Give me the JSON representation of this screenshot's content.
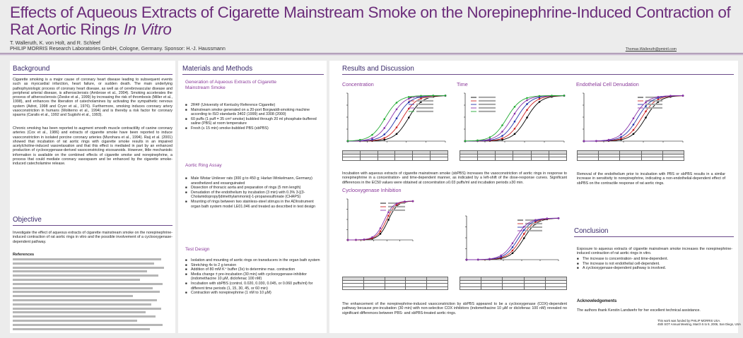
{
  "header": {
    "title_main": "Effects of Aqueous Extracts of Cigarette Mainstream Smoke on the Norepinephrine-Induced Contraction of Rat Aortic Rings ",
    "title_italic": "In Vitro",
    "authors": "T. Walleruth, K. von Holt, and R. Schleef",
    "affiliation": "PHILIP MORRIS Research Laboratories GmbH, Cologne, Germany. Sponsor: H.-J. Haussmann",
    "email": "Thomas.Walleruth@pmintl.com"
  },
  "background": {
    "title": "Background",
    "p1": "Cigarette smoking is a major cause of coronary heart disease leading to subsequent events such as myocardial infarction, heart failure, or sudden death. The main underlying pathophysiologic process of coronary heart disease, as well as of cerebrovascular disease and peripheral arterial disease, is atherosclerosis (Ambrose et al., 2004). Smoking accelerates the process of atherosclerosis (Zieske et al., 1999) by increasing the risk of thrombosis (Miller et al., 1998), and enhances the liberation of catecholamines by activating the sympathetic nervous system (Adrot, 1998 and Cryer et al., 1976). Furthermore, smoking induces coronary artery vasoconstriction in humans (Moliterno et al., 1994) and is thereby a risk factor for coronary spasms (Caralis et al., 1992 and Sugiishi et al., 1993).",
    "p2": "Chronic smoking has been reported to augment smooth muscle contractility of canine coronary arteries (Cox et al., 1986) and extracts of cigarette smoke have been reported to induce vasoconstriction in isolated porcine coronary arteries (Murohara et al., 1994). Raij et al. (2001) showed that incubation of rat aortic rings with cigarette smoke results in an impaired acetylcholine-induced vasorelaxation and that this effect is mediated in part by an enhanced production of cyclooxygenase-derived vasoconstricting eicosanoids. However, little mechanistic information is available on the combined effects of cigarette smoke and norepinephrine, a process that could mediate coronary vasospasm and be enhanced by the cigarette smoke-induced catecholamine release."
  },
  "objective": {
    "title": "Objective",
    "p1": "Investigate the effect of aqueous extracts of cigarette mainstream smoke on the norepinephrine-induced contraction of rat aortic rings in vitro and the possible involvement of a cyclooxygenase-dependent pathway."
  },
  "references": {
    "title": "References"
  },
  "methods": {
    "title": "Materials and Methods",
    "gen_title": "Generation of Aqueous Extracts of Cigarette Mainstream Smoke",
    "gen_items": [
      "2R4F (University of Kentucky Reference Cigarette)",
      "Mainstream smoke generated on a 20-port Borgwaldt-smoking machine according to ISO standards 3402 (1999) and 3308 (2000)",
      "60 puffs (1 puff = 35 cm³ smoke) bubbled through 20 ml phosphate-buffered saline (PBS) at room temperature",
      "Fresh (≤ 15 min) smoke-bubbled PBS (sbPBS)"
    ],
    "ring_title": "Aortic Ring Assay",
    "ring_items": [
      "Male Wistar Unilever rats (300 g to 450 g; Harlan Winkelmann, Germany) anesthetized and exsanguinated",
      "Dissection of thoracic aorta and preparation of rings (5 mm length)",
      "Denudation of the endothelium by incubation (3 min) with 0.3% 3-[(3-Cholamidopropyl)dimethylammonio]-1-propanesulfonate (CHAPS)",
      "Mounting of rings between two stainless-steel stirrups in the ADInstrument organ bath system model LE01.046 and treated as described in test design"
    ],
    "design_title": "Test Design",
    "design_items": [
      "Isolation and mounting of aortic rings on transducers in the organ bath system",
      "Stretching 4x to 2 g tension",
      "Addition of 80 mM K⁺ buffer (3x) to determine max. contraction",
      "Media change ± pre-incubation (30 min) with cyclooxygenase-inhibitor (indomethacine 10 µM, diclofenac 100 nM)",
      "Incubation with sbPBS (control, 0.020, 0.030, 0.045, or 0.060 puffs/ml) for different time periods (1, 15, 30, 45, or 60 min)",
      "Contraction with norepinephrine (1 nM to 10 µM)"
    ]
  },
  "results": {
    "title": "Results and Discussion",
    "conc_title": "Concentration",
    "time_title": "Time",
    "endo_title": "Endothelial Cell Denudation",
    "cox_title": "Cyclooxygenase Inhibition",
    "conc_text": "Incubation with aqueous extracts of cigarette mainstream smoke (sbPBS) increases the vasoconstriction of aortic rings in response to norepinephrine in a concentration- and time-dependent manner, as indicated by a left-shift of the dose-response curves. Significant differences in the EC50 values were obtained at concentration ≥0.03 puffs/ml and incubation periods ≥30 min.",
    "endo_text": "Removal of the endothelium prior to incubation with PBS or sbPBS results in a similar increase in sensitivity to norepinephrine, indicating a non-endothelial-dependent effect of sbPBS on the contractile response of rat aortic rings.",
    "cox_text": "The enhancement of the norepinephrine-induced vasoconstriction by sbPBS appeared to be a cyclooxygenase (COX)-dependent pathway because pre-incubation (30 min) with non-selective COX inhibitors (indomethacine 10 µM or diclofenac 100 nM) revealed no significant differences between PBS- and sbPBS-treated aortic rings."
  },
  "conclusion": {
    "title": "Conclusion",
    "intro": "Exposure to aqueous extracts of cigarette mainstream smoke increases the norepinephrine-induced contraction of rat aortic rings in vitro.",
    "items": [
      "The increase is concentration- and time-dependent.",
      "The increase is not endothelial cell-dependent.",
      "A cyclooxygenase-dependent pathway is involved."
    ],
    "ack_title": "Acknowledgements",
    "ack_text": "The authors thank Kerstin Landwehr for her excellent technical assistance.",
    "footer1": "This work was funded by PHILIP MORRIS USA.",
    "footer2": "45th SOT Annual Meeting, March 5 to 9, 2006, San Diego, USA"
  },
  "colors": {
    "title": "#6b2c7a",
    "section": "#3a2a6a",
    "subheading": "#8a3a9a",
    "curve_black": "#000000",
    "curve_red": "#cc2222",
    "curve_blue": "#2233aa",
    "curve_purple": "#8833aa",
    "curve_green": "#22aa33"
  }
}
